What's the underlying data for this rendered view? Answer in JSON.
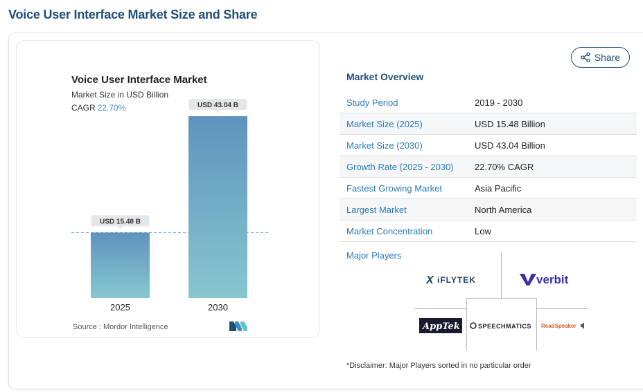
{
  "page_title": "Voice User Interface Market Size and Share",
  "share_label": "Share",
  "chart_data": {
    "type": "bar",
    "title": "Voice User Interface Market",
    "subtitle": "Market Size in USD Billion",
    "cagr_label": "CAGR",
    "cagr_value": "22.70%",
    "categories": [
      "2025",
      "2030"
    ],
    "values": [
      15.48,
      43.04
    ],
    "data_labels": [
      "USD 15.48 B",
      "USD 43.04 B"
    ],
    "ylim": [
      0,
      46
    ],
    "grid": false,
    "reference_line": "dashed line at 2025 value",
    "colors": {
      "bar_top": "#5f93bd",
      "bar_bottom": "#86c7cf",
      "label_bg": "#e4e7ea",
      "ref_line": "#6a9bc3"
    },
    "source": "Source :  Mordor Intelligence"
  },
  "overview": {
    "title": "Market Overview",
    "rows": [
      {
        "key": "Study Period",
        "value": "2019 - 2030"
      },
      {
        "key": "Market Size (2025)",
        "value": "USD 15.48 Billion"
      },
      {
        "key": "Market Size (2030)",
        "value": "USD 43.04 Billion"
      },
      {
        "key": "Growth Rate (2025 - 2030)",
        "value": "22.70% CAGR"
      },
      {
        "key": "Fastest Growing Market",
        "value": "Asia Pacific"
      },
      {
        "key": "Largest Market",
        "value": "North America"
      },
      {
        "key": "Market Concentration",
        "value": "Low"
      }
    ]
  },
  "major_players": {
    "title": "Major Players",
    "logos": [
      "iFLYTEK",
      "verbit",
      "AppTek",
      "SPEECHMATICS",
      "ReadSpeaker"
    ]
  },
  "disclaimer": "*Disclaimer: Major Players sorted in no particular order"
}
